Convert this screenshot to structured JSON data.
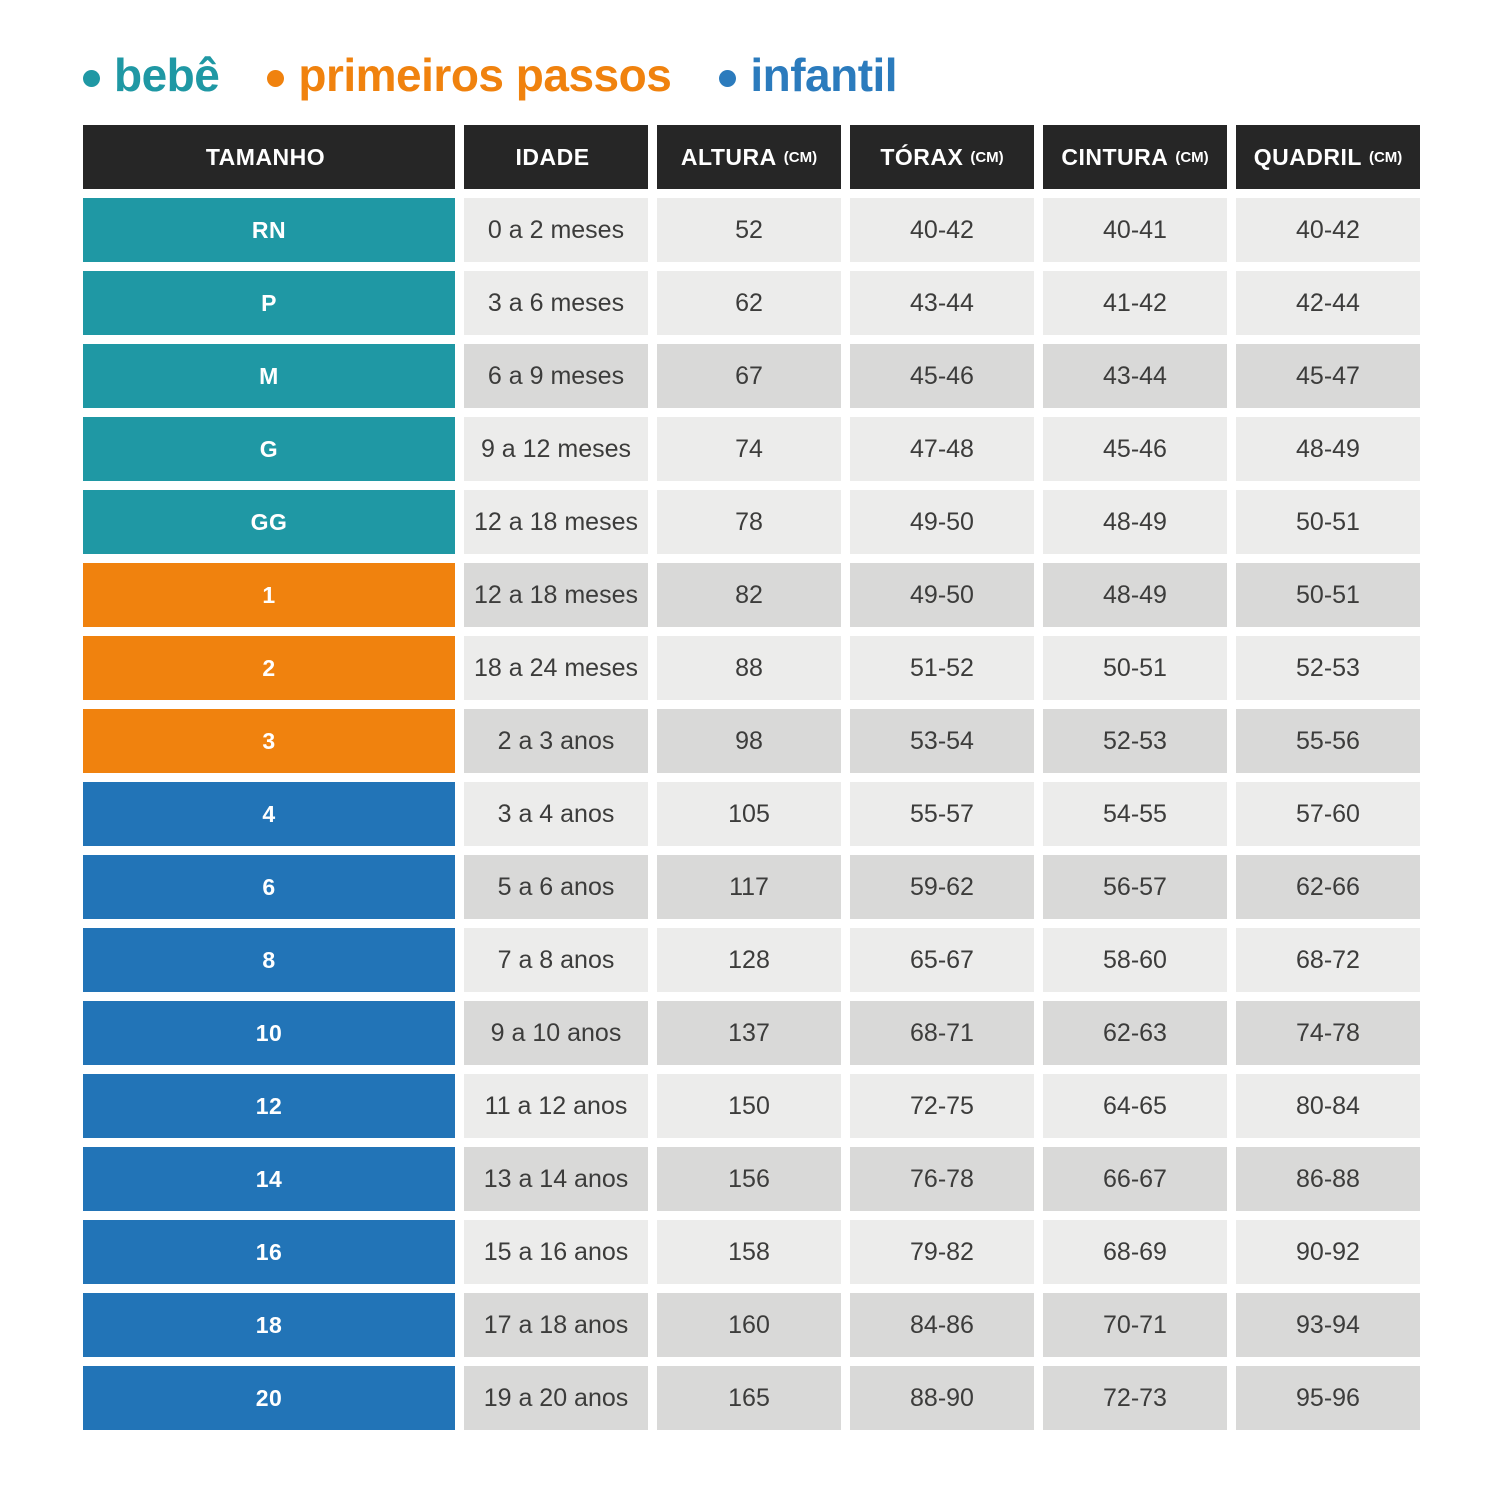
{
  "legend": {
    "items": [
      {
        "label": "bebê",
        "color": "#1F98A4"
      },
      {
        "label": "primeiros passos",
        "color": "#F0820E"
      },
      {
        "label": "infantil",
        "color": "#2B7BBD"
      }
    ]
  },
  "table": {
    "header": {
      "bg": "#262626",
      "text_color": "#FFFFFF",
      "columns": [
        {
          "label": "TAMANHO",
          "unit": ""
        },
        {
          "label": "IDADE",
          "unit": ""
        },
        {
          "label": "ALTURA",
          "unit": "(CM)"
        },
        {
          "label": "TÓRAX",
          "unit": "(CM)"
        },
        {
          "label": "CINTURA",
          "unit": "(CM)"
        },
        {
          "label": "QUADRIL",
          "unit": "(CM)"
        }
      ]
    },
    "group_colors": {
      "bebe": "#1F98A4",
      "primeiros_passos": "#F0820E",
      "infantil": "#2274B7"
    },
    "cell_colors": {
      "light": "#ECECEB",
      "dark": "#D9D9D8"
    },
    "data_text_color": "#3C3C3B",
    "rows": [
      {
        "size": "RN",
        "age": "0 a 2 meses",
        "height": "52",
        "chest": "40-42",
        "waist": "40-41",
        "hip": "40-42",
        "group": "bebe",
        "shade": "light"
      },
      {
        "size": "P",
        "age": "3 a 6 meses",
        "height": "62",
        "chest": "43-44",
        "waist": "41-42",
        "hip": "42-44",
        "group": "bebe",
        "shade": "light"
      },
      {
        "size": "M",
        "age": "6 a 9 meses",
        "height": "67",
        "chest": "45-46",
        "waist": "43-44",
        "hip": "45-47",
        "group": "bebe",
        "shade": "dark"
      },
      {
        "size": "G",
        "age": "9 a 12 meses",
        "height": "74",
        "chest": "47-48",
        "waist": "45-46",
        "hip": "48-49",
        "group": "bebe",
        "shade": "light"
      },
      {
        "size": "GG",
        "age": "12 a 18 meses",
        "height": "78",
        "chest": "49-50",
        "waist": "48-49",
        "hip": "50-51",
        "group": "bebe",
        "shade": "light"
      },
      {
        "size": "1",
        "age": "12 a 18 meses",
        "height": "82",
        "chest": "49-50",
        "waist": "48-49",
        "hip": "50-51",
        "group": "primeiros_passos",
        "shade": "dark"
      },
      {
        "size": "2",
        "age": "18 a 24 meses",
        "height": "88",
        "chest": "51-52",
        "waist": "50-51",
        "hip": "52-53",
        "group": "primeiros_passos",
        "shade": "light"
      },
      {
        "size": "3",
        "age": "2 a 3 anos",
        "height": "98",
        "chest": "53-54",
        "waist": "52-53",
        "hip": "55-56",
        "group": "primeiros_passos",
        "shade": "dark"
      },
      {
        "size": "4",
        "age": "3 a 4 anos",
        "height": "105",
        "chest": "55-57",
        "waist": "54-55",
        "hip": "57-60",
        "group": "infantil",
        "shade": "light"
      },
      {
        "size": "6",
        "age": "5 a 6 anos",
        "height": "117",
        "chest": "59-62",
        "waist": "56-57",
        "hip": "62-66",
        "group": "infantil",
        "shade": "dark"
      },
      {
        "size": "8",
        "age": "7 a 8 anos",
        "height": "128",
        "chest": "65-67",
        "waist": "58-60",
        "hip": "68-72",
        "group": "infantil",
        "shade": "light"
      },
      {
        "size": "10",
        "age": "9 a 10 anos",
        "height": "137",
        "chest": "68-71",
        "waist": "62-63",
        "hip": "74-78",
        "group": "infantil",
        "shade": "dark"
      },
      {
        "size": "12",
        "age": "11 a 12 anos",
        "height": "150",
        "chest": "72-75",
        "waist": "64-65",
        "hip": "80-84",
        "group": "infantil",
        "shade": "light"
      },
      {
        "size": "14",
        "age": "13 a 14 anos",
        "height": "156",
        "chest": "76-78",
        "waist": "66-67",
        "hip": "86-88",
        "group": "infantil",
        "shade": "dark"
      },
      {
        "size": "16",
        "age": "15 a 16 anos",
        "height": "158",
        "chest": "79-82",
        "waist": "68-69",
        "hip": "90-92",
        "group": "infantil",
        "shade": "light"
      },
      {
        "size": "18",
        "age": "17 a 18 anos",
        "height": "160",
        "chest": "84-86",
        "waist": "70-71",
        "hip": "93-94",
        "group": "infantil",
        "shade": "dark"
      },
      {
        "size": "20",
        "age": "19 a 20 anos",
        "height": "165",
        "chest": "88-90",
        "waist": "72-73",
        "hip": "95-96",
        "group": "infantil",
        "shade": "dark"
      }
    ]
  },
  "chart_data": {
    "type": "table",
    "title": "",
    "legend": [
      "bebê",
      "primeiros passos",
      "infantil"
    ],
    "columns": [
      "TAMANHO",
      "IDADE",
      "ALTURA (CM)",
      "TÓRAX (CM)",
      "CINTURA (CM)",
      "QUADRIL (CM)"
    ],
    "rows": [
      [
        "RN",
        "0 a 2 meses",
        "52",
        "40-42",
        "40-41",
        "40-42"
      ],
      [
        "P",
        "3 a 6 meses",
        "62",
        "43-44",
        "41-42",
        "42-44"
      ],
      [
        "M",
        "6 a 9 meses",
        "67",
        "45-46",
        "43-44",
        "45-47"
      ],
      [
        "G",
        "9 a 12 meses",
        "74",
        "47-48",
        "45-46",
        "48-49"
      ],
      [
        "GG",
        "12 a 18 meses",
        "78",
        "49-50",
        "48-49",
        "50-51"
      ],
      [
        "1",
        "12 a 18 meses",
        "82",
        "49-50",
        "48-49",
        "50-51"
      ],
      [
        "2",
        "18 a 24 meses",
        "88",
        "51-52",
        "50-51",
        "52-53"
      ],
      [
        "3",
        "2 a 3 anos",
        "98",
        "53-54",
        "52-53",
        "55-56"
      ],
      [
        "4",
        "3 a 4 anos",
        "105",
        "55-57",
        "54-55",
        "57-60"
      ],
      [
        "6",
        "5 a 6 anos",
        "117",
        "59-62",
        "56-57",
        "62-66"
      ],
      [
        "8",
        "7 a 8 anos",
        "128",
        "65-67",
        "58-60",
        "68-72"
      ],
      [
        "10",
        "9 a 10 anos",
        "137",
        "68-71",
        "62-63",
        "74-78"
      ],
      [
        "12",
        "11 a 12 anos",
        "150",
        "72-75",
        "64-65",
        "80-84"
      ],
      [
        "14",
        "13 a 14 anos",
        "156",
        "76-78",
        "66-67",
        "86-88"
      ],
      [
        "16",
        "15 a 16 anos",
        "158",
        "79-82",
        "68-69",
        "90-92"
      ],
      [
        "18",
        "17 a 18 anos",
        "160",
        "84-86",
        "70-71",
        "93-94"
      ],
      [
        "20",
        "19 a 20 anos",
        "165",
        "88-90",
        "72-73",
        "95-96"
      ]
    ],
    "row_groups": {
      "bebê": [
        "RN",
        "P",
        "M",
        "G",
        "GG"
      ],
      "primeiros passos": [
        "1",
        "2",
        "3"
      ],
      "infantil": [
        "4",
        "6",
        "8",
        "10",
        "12",
        "14",
        "16",
        "18",
        "20"
      ]
    }
  }
}
